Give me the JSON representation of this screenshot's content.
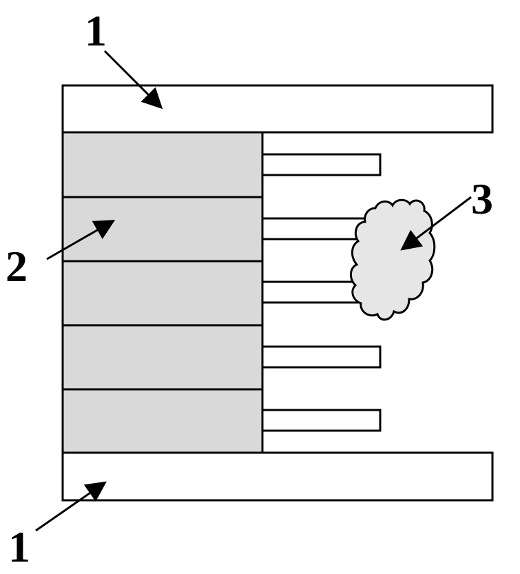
{
  "labels": {
    "top_plate": "1",
    "layer_stack": "2",
    "cloud": "3",
    "bottom_plate": "1"
  },
  "colors": {
    "stroke": "#000000",
    "layer_fill": "#d9d9d9",
    "cloud_fill": "#e6e6e6",
    "background": "#ffffff"
  }
}
